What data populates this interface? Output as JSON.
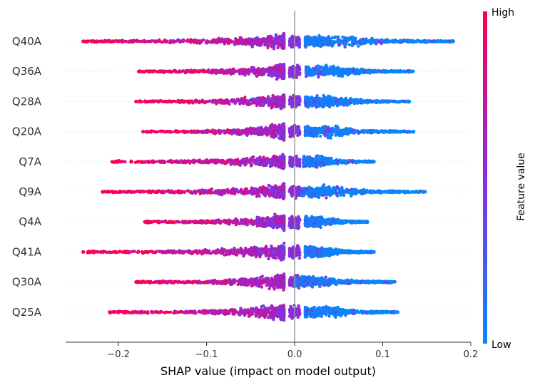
{
  "chart_data": {
    "type": "scatter",
    "subtype": "shap-beeswarm",
    "title": "",
    "xlabel": "SHAP value (impact on model output)",
    "ylabel": "",
    "xlim": [
      -0.26,
      0.2
    ],
    "x_ticks": [
      -0.2,
      -0.1,
      0.0,
      0.1,
      0.2
    ],
    "x_tick_labels": [
      "−0.2",
      "−0.1",
      "0.0",
      "0.1",
      "0.2"
    ],
    "grid": false,
    "zero_line": true,
    "colorbar": {
      "label": "Feature value",
      "high_label": "High",
      "low_label": "Low",
      "high_color": "#ff0052",
      "mid_color": "#8a2be2",
      "low_color": "#008bfb"
    },
    "features": [
      {
        "name": "Q40A",
        "neg_min": -0.24,
        "neg_dense": -0.012,
        "pos_dense": 0.012,
        "pos_max": 0.18,
        "neg_outliers": [
          -0.24,
          -0.235,
          -0.23,
          -0.215,
          -0.21,
          -0.2
        ],
        "pos_outliers": [
          0.165,
          0.18
        ]
      },
      {
        "name": "Q36A",
        "neg_min": -0.177,
        "neg_dense": -0.012,
        "pos_dense": 0.013,
        "pos_max": 0.135,
        "neg_outliers": [
          -0.177,
          -0.165
        ],
        "pos_outliers": []
      },
      {
        "name": "Q28A",
        "neg_min": -0.18,
        "neg_dense": -0.012,
        "pos_dense": 0.012,
        "pos_max": 0.13,
        "neg_outliers": [
          -0.18,
          -0.17,
          -0.16
        ],
        "pos_outliers": [
          0.13
        ]
      },
      {
        "name": "Q20A",
        "neg_min": -0.172,
        "neg_dense": -0.012,
        "pos_dense": 0.012,
        "pos_max": 0.135,
        "neg_outliers": [
          -0.172
        ],
        "pos_outliers": [
          0.13,
          0.135
        ]
      },
      {
        "name": "Q7A",
        "neg_min": -0.207,
        "neg_dense": -0.012,
        "pos_dense": 0.01,
        "pos_max": 0.09,
        "neg_outliers": [
          -0.207,
          -0.2,
          -0.185,
          -0.178
        ],
        "pos_outliers": [
          0.09
        ]
      },
      {
        "name": "Q9A",
        "neg_min": -0.218,
        "neg_dense": -0.012,
        "pos_dense": 0.008,
        "pos_max": 0.148,
        "neg_outliers": [
          -0.218,
          -0.206,
          -0.185
        ],
        "pos_outliers": [
          0.148
        ]
      },
      {
        "name": "Q4A",
        "neg_min": -0.17,
        "neg_dense": -0.012,
        "pos_dense": 0.012,
        "pos_max": 0.083,
        "neg_outliers": [
          -0.17
        ],
        "pos_outliers": []
      },
      {
        "name": "Q41A",
        "neg_min": -0.24,
        "neg_dense": -0.012,
        "pos_dense": 0.012,
        "pos_max": 0.09,
        "neg_outliers": [
          -0.24,
          -0.22,
          -0.19
        ],
        "pos_outliers": [
          0.09
        ]
      },
      {
        "name": "Q30A",
        "neg_min": -0.18,
        "neg_dense": -0.012,
        "pos_dense": 0.0,
        "pos_max": 0.115,
        "neg_outliers": [
          -0.18,
          -0.165
        ],
        "pos_outliers": []
      },
      {
        "name": "Q25A",
        "neg_min": -0.21,
        "neg_dense": -0.012,
        "pos_dense": 0.012,
        "pos_max": 0.117,
        "neg_outliers": [
          -0.21,
          -0.2,
          -0.19,
          -0.18,
          -0.17
        ],
        "pos_outliers": [
          0.117
        ]
      }
    ]
  }
}
